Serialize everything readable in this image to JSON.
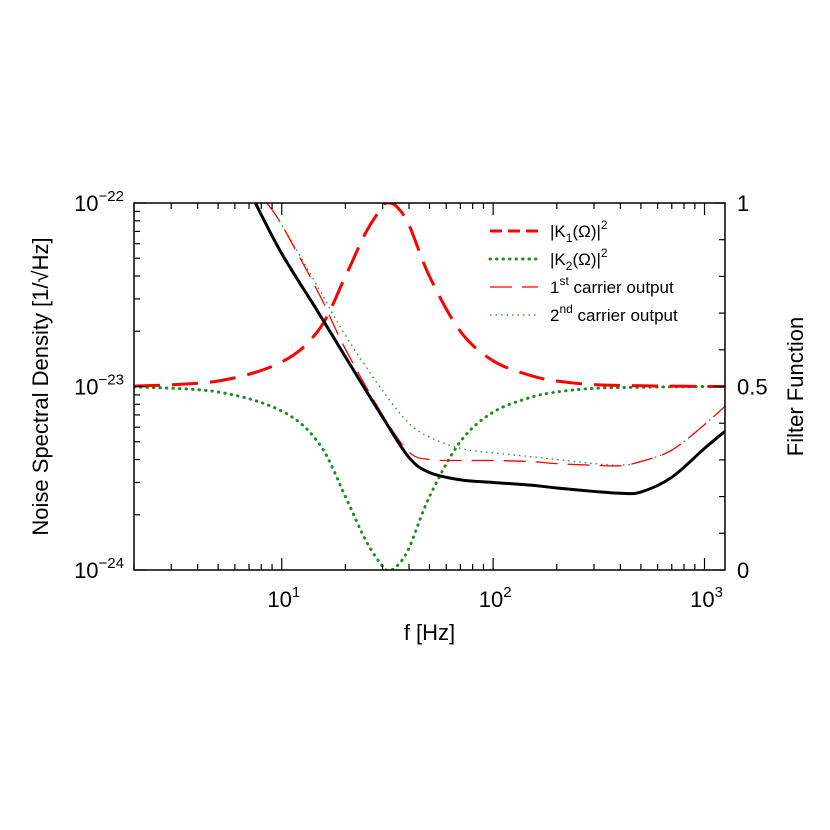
{
  "chart_data": {
    "type": "line",
    "xlabel": "f [Hz]",
    "ylabel_left": "Noise Spectral Density [1/√Hz]",
    "ylabel_right": "Filter Function",
    "x_scale": "log",
    "xlim": [
      2,
      1250
    ],
    "y_left_scale": "log",
    "y_left_lim": [
      1e-24,
      1e-22
    ],
    "y_right_lim": [
      0,
      1
    ],
    "x_ticks": [
      {
        "base": "10",
        "exp": "1",
        "value": 10
      },
      {
        "base": "10",
        "exp": "2",
        "value": 100
      },
      {
        "base": "10",
        "exp": "3",
        "value": 1000
      }
    ],
    "y_left_ticks": [
      {
        "base": "10",
        "exp": "−22",
        "value": 1e-22
      },
      {
        "base": "10",
        "exp": "−23",
        "value": 1e-23
      },
      {
        "base": "10",
        "exp": "−24",
        "value": 1e-24
      }
    ],
    "y_right_ticks": [
      {
        "label": "1",
        "value": 1
      },
      {
        "label": "0.5",
        "value": 0.5
      },
      {
        "label": "0",
        "value": 0
      }
    ],
    "grid": false,
    "legend_position": "top-right",
    "legend": [
      {
        "main": "|K",
        "sub": "1",
        "rest": "(Ω)|",
        "sup": "2",
        "after": "",
        "series": "K1"
      },
      {
        "main": "|K",
        "sub": "2",
        "rest": "(Ω)|",
        "sup": "2",
        "after": "",
        "series": "K2"
      },
      {
        "main": "1",
        "sub": "",
        "rest": "",
        "sup": "st",
        "after": " carrier output",
        "series": "carrier1"
      },
      {
        "main": "2",
        "sub": "",
        "rest": "",
        "sup": "nd",
        "after": " carrier output",
        "series": "carrier2"
      }
    ],
    "series": [
      {
        "id": "K1",
        "axis": "right",
        "color": "#ff0000",
        "style": "long-dash-thick",
        "x": [
          2,
          5,
          10,
          15,
          20,
          25,
          30,
          32,
          35,
          40,
          50,
          70,
          100,
          150,
          200,
          300,
          500,
          1000,
          1250
        ],
        "y": [
          0.501,
          0.515,
          0.567,
          0.655,
          0.8,
          0.92,
          0.99,
          1.0,
          0.99,
          0.94,
          0.8,
          0.65,
          0.57,
          0.53,
          0.515,
          0.505,
          0.502,
          0.5,
          0.5
        ]
      },
      {
        "id": "K2",
        "axis": "right",
        "color": "#228b22",
        "style": "dotted-thick",
        "x": [
          2,
          5,
          10,
          15,
          20,
          25,
          30,
          32,
          35,
          40,
          50,
          70,
          100,
          150,
          200,
          300,
          500,
          1000,
          1250
        ],
        "y": [
          0.499,
          0.485,
          0.433,
          0.345,
          0.2,
          0.08,
          0.01,
          0.0,
          0.01,
          0.06,
          0.2,
          0.35,
          0.43,
          0.47,
          0.485,
          0.495,
          0.498,
          0.5,
          0.5
        ]
      },
      {
        "id": "total",
        "axis": "left",
        "color": "#000000",
        "style": "solid-thick",
        "x": [
          7.5,
          10,
          15,
          20,
          30,
          40,
          50,
          70,
          100,
          150,
          200,
          300,
          400,
          500,
          700,
          1000,
          1250
        ],
        "y": [
          1e-22,
          5.3e-23,
          2.5e-23,
          1.45e-23,
          6.8e-24,
          4.1e-24,
          3.4e-24,
          3.1e-24,
          3e-24,
          2.9e-24,
          2.8e-24,
          2.68e-24,
          2.62e-24,
          2.66e-24,
          3.2e-24,
          4.6e-24,
          5.7e-24
        ]
      },
      {
        "id": "carrier1",
        "axis": "left",
        "color": "#ff0000",
        "style": "long-dash-thin",
        "x": [
          8.5,
          10,
          15,
          20,
          30,
          40,
          50,
          70,
          100,
          150,
          200,
          300,
          400,
          500,
          700,
          1000,
          1250
        ],
        "y": [
          1e-22,
          7.6e-23,
          3.2e-23,
          1.6e-23,
          7e-24,
          4.4e-24,
          4e-24,
          3.95e-24,
          3.95e-24,
          3.9e-24,
          3.8e-24,
          3.72e-24,
          3.7e-24,
          3.9e-24,
          4.5e-24,
          6.2e-24,
          7.8e-24
        ]
      },
      {
        "id": "carrier2",
        "axis": "left",
        "color": "#228b22",
        "style": "dotted-thin",
        "x": [
          8.5,
          10,
          15,
          20,
          30,
          40,
          50,
          70,
          100,
          150,
          200,
          300,
          400,
          500,
          700,
          1000,
          1250
        ],
        "y": [
          1e-22,
          7.6e-23,
          3.4e-23,
          1.9e-23,
          9.5e-24,
          6.3e-24,
          5.3e-24,
          4.6e-24,
          4.35e-24,
          4.15e-24,
          4e-24,
          3.8e-24,
          3.72e-24,
          3.9e-24,
          4.5e-24,
          6.2e-24,
          7.8e-24
        ]
      }
    ]
  }
}
